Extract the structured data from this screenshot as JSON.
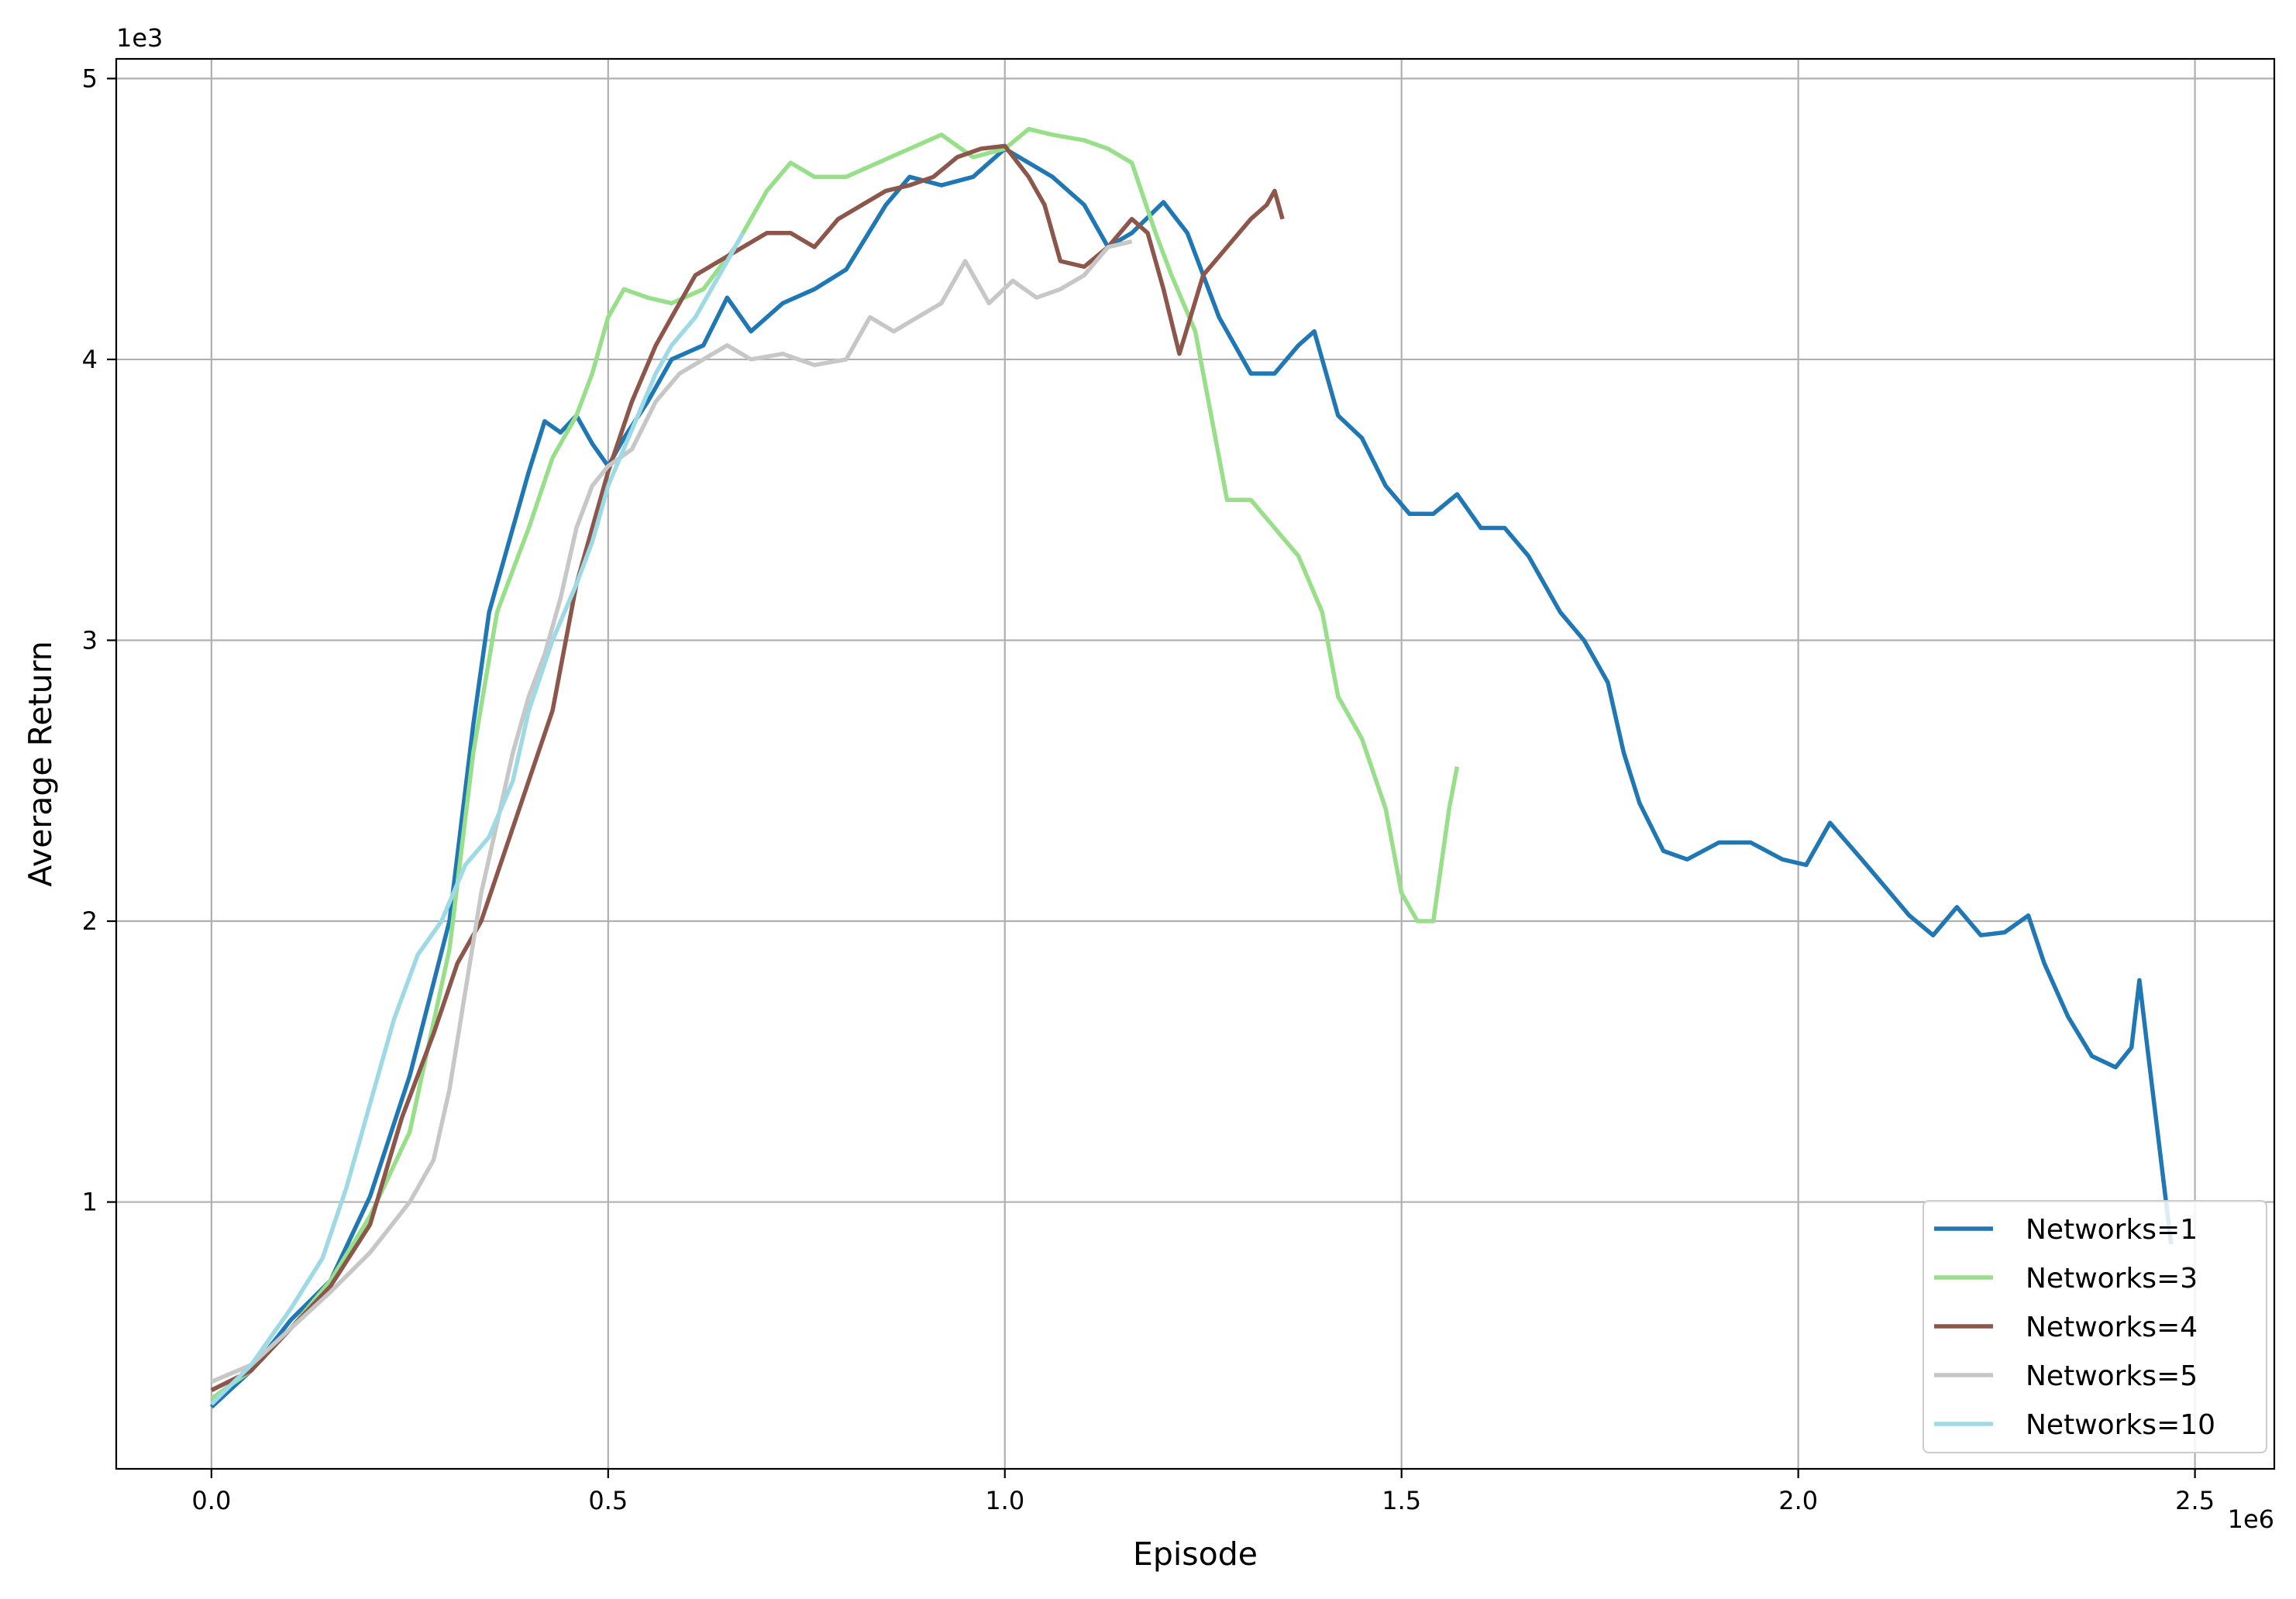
{
  "chart_data": {
    "type": "line",
    "title": "",
    "xlabel": "Episode",
    "ylabel": "Average Return",
    "x_offset_text": "1e6",
    "y_offset_text": "1e3",
    "xlim": [
      -0.12,
      2.6
    ],
    "ylim": [
      0.05,
      5.07
    ],
    "xticks": [
      0.0,
      0.5,
      1.0,
      1.5,
      2.0,
      2.5
    ],
    "xtick_labels": [
      "0.0",
      "0.5",
      "1.0",
      "1.5",
      "2.0",
      "2.5"
    ],
    "yticks": [
      1,
      2,
      3,
      4,
      5
    ],
    "ytick_labels": [
      "1",
      "2",
      "3",
      "4",
      "5"
    ],
    "grid": true,
    "legend_position": "lower-right",
    "series": [
      {
        "name": "Networks=1",
        "color": "#1f77b4",
        "points": [
          [
            0.0,
            0.27
          ],
          [
            0.05,
            0.4
          ],
          [
            0.1,
            0.58
          ],
          [
            0.15,
            0.72
          ],
          [
            0.2,
            1.02
          ],
          [
            0.25,
            1.45
          ],
          [
            0.3,
            2.0
          ],
          [
            0.33,
            2.7
          ],
          [
            0.35,
            3.1
          ],
          [
            0.38,
            3.4
          ],
          [
            0.4,
            3.6
          ],
          [
            0.42,
            3.78
          ],
          [
            0.44,
            3.74
          ],
          [
            0.46,
            3.8
          ],
          [
            0.48,
            3.7
          ],
          [
            0.5,
            3.62
          ],
          [
            0.52,
            3.72
          ],
          [
            0.55,
            3.85
          ],
          [
            0.58,
            4.0
          ],
          [
            0.62,
            4.05
          ],
          [
            0.65,
            4.22
          ],
          [
            0.68,
            4.1
          ],
          [
            0.72,
            4.2
          ],
          [
            0.76,
            4.25
          ],
          [
            0.8,
            4.32
          ],
          [
            0.85,
            4.55
          ],
          [
            0.88,
            4.65
          ],
          [
            0.92,
            4.62
          ],
          [
            0.96,
            4.65
          ],
          [
            1.0,
            4.75
          ],
          [
            1.03,
            4.7
          ],
          [
            1.06,
            4.65
          ],
          [
            1.1,
            4.55
          ],
          [
            1.13,
            4.4
          ],
          [
            1.16,
            4.45
          ],
          [
            1.2,
            4.56
          ],
          [
            1.23,
            4.45
          ],
          [
            1.27,
            4.15
          ],
          [
            1.31,
            3.95
          ],
          [
            1.34,
            3.95
          ],
          [
            1.37,
            4.05
          ],
          [
            1.39,
            4.1
          ],
          [
            1.42,
            3.8
          ],
          [
            1.45,
            3.72
          ],
          [
            1.48,
            3.55
          ],
          [
            1.51,
            3.45
          ],
          [
            1.54,
            3.45
          ],
          [
            1.57,
            3.52
          ],
          [
            1.6,
            3.4
          ],
          [
            1.63,
            3.4
          ],
          [
            1.66,
            3.3
          ],
          [
            1.7,
            3.1
          ],
          [
            1.73,
            3.0
          ],
          [
            1.76,
            2.85
          ],
          [
            1.78,
            2.6
          ],
          [
            1.8,
            2.42
          ],
          [
            1.83,
            2.25
          ],
          [
            1.86,
            2.22
          ],
          [
            1.9,
            2.28
          ],
          [
            1.94,
            2.28
          ],
          [
            1.98,
            2.22
          ],
          [
            2.01,
            2.2
          ],
          [
            2.04,
            2.35
          ],
          [
            2.08,
            2.22
          ],
          [
            2.11,
            2.12
          ],
          [
            2.14,
            2.02
          ],
          [
            2.17,
            1.95
          ],
          [
            2.2,
            2.05
          ],
          [
            2.23,
            1.95
          ],
          [
            2.26,
            1.96
          ],
          [
            2.29,
            2.02
          ],
          [
            2.31,
            1.85
          ],
          [
            2.34,
            1.66
          ],
          [
            2.37,
            1.52
          ],
          [
            2.4,
            1.48
          ],
          [
            2.42,
            1.55
          ],
          [
            2.43,
            1.79
          ],
          [
            2.44,
            1.55
          ],
          [
            2.47,
            0.85
          ]
        ]
      },
      {
        "name": "Networks=3",
        "color": "#98df8a",
        "points": [
          [
            0.0,
            0.3
          ],
          [
            0.05,
            0.4
          ],
          [
            0.1,
            0.55
          ],
          [
            0.15,
            0.72
          ],
          [
            0.2,
            0.95
          ],
          [
            0.25,
            1.25
          ],
          [
            0.3,
            1.9
          ],
          [
            0.33,
            2.6
          ],
          [
            0.36,
            3.1
          ],
          [
            0.38,
            3.25
          ],
          [
            0.4,
            3.4
          ],
          [
            0.43,
            3.65
          ],
          [
            0.46,
            3.8
          ],
          [
            0.48,
            3.95
          ],
          [
            0.5,
            4.15
          ],
          [
            0.52,
            4.25
          ],
          [
            0.55,
            4.22
          ],
          [
            0.58,
            4.2
          ],
          [
            0.62,
            4.25
          ],
          [
            0.66,
            4.4
          ],
          [
            0.7,
            4.6
          ],
          [
            0.73,
            4.7
          ],
          [
            0.76,
            4.65
          ],
          [
            0.8,
            4.65
          ],
          [
            0.84,
            4.7
          ],
          [
            0.88,
            4.75
          ],
          [
            0.92,
            4.8
          ],
          [
            0.96,
            4.72
          ],
          [
            1.0,
            4.75
          ],
          [
            1.03,
            4.82
          ],
          [
            1.06,
            4.8
          ],
          [
            1.1,
            4.78
          ],
          [
            1.13,
            4.75
          ],
          [
            1.16,
            4.7
          ],
          [
            1.19,
            4.45
          ],
          [
            1.21,
            4.3
          ],
          [
            1.24,
            4.1
          ],
          [
            1.26,
            3.8
          ],
          [
            1.28,
            3.5
          ],
          [
            1.31,
            3.5
          ],
          [
            1.34,
            3.4
          ],
          [
            1.37,
            3.3
          ],
          [
            1.4,
            3.1
          ],
          [
            1.42,
            2.8
          ],
          [
            1.45,
            2.65
          ],
          [
            1.48,
            2.4
          ],
          [
            1.5,
            2.1
          ],
          [
            1.52,
            2.0
          ],
          [
            1.54,
            2.0
          ],
          [
            1.56,
            2.4
          ],
          [
            1.57,
            2.55
          ]
        ]
      },
      {
        "name": "Networks=4",
        "color": "#8c564b",
        "points": [
          [
            0.0,
            0.33
          ],
          [
            0.05,
            0.4
          ],
          [
            0.1,
            0.55
          ],
          [
            0.15,
            0.7
          ],
          [
            0.2,
            0.92
          ],
          [
            0.24,
            1.3
          ],
          [
            0.28,
            1.6
          ],
          [
            0.31,
            1.85
          ],
          [
            0.34,
            2.0
          ],
          [
            0.37,
            2.25
          ],
          [
            0.4,
            2.5
          ],
          [
            0.43,
            2.75
          ],
          [
            0.46,
            3.2
          ],
          [
            0.48,
            3.4
          ],
          [
            0.5,
            3.6
          ],
          [
            0.53,
            3.85
          ],
          [
            0.56,
            4.05
          ],
          [
            0.58,
            4.15
          ],
          [
            0.61,
            4.3
          ],
          [
            0.64,
            4.35
          ],
          [
            0.67,
            4.4
          ],
          [
            0.7,
            4.45
          ],
          [
            0.73,
            4.45
          ],
          [
            0.76,
            4.4
          ],
          [
            0.79,
            4.5
          ],
          [
            0.82,
            4.55
          ],
          [
            0.85,
            4.6
          ],
          [
            0.88,
            4.62
          ],
          [
            0.91,
            4.65
          ],
          [
            0.94,
            4.72
          ],
          [
            0.97,
            4.75
          ],
          [
            1.0,
            4.76
          ],
          [
            1.03,
            4.65
          ],
          [
            1.05,
            4.55
          ],
          [
            1.07,
            4.35
          ],
          [
            1.1,
            4.33
          ],
          [
            1.13,
            4.4
          ],
          [
            1.16,
            4.5
          ],
          [
            1.18,
            4.45
          ],
          [
            1.2,
            4.25
          ],
          [
            1.22,
            4.02
          ],
          [
            1.25,
            4.3
          ],
          [
            1.28,
            4.4
          ],
          [
            1.31,
            4.5
          ],
          [
            1.33,
            4.55
          ],
          [
            1.34,
            4.6
          ],
          [
            1.35,
            4.5
          ]
        ]
      },
      {
        "name": "Networks=5",
        "color": "#c7c7c7",
        "points": [
          [
            0.0,
            0.36
          ],
          [
            0.05,
            0.42
          ],
          [
            0.1,
            0.55
          ],
          [
            0.15,
            0.68
          ],
          [
            0.2,
            0.82
          ],
          [
            0.25,
            1.0
          ],
          [
            0.28,
            1.15
          ],
          [
            0.3,
            1.4
          ],
          [
            0.32,
            1.75
          ],
          [
            0.34,
            2.1
          ],
          [
            0.36,
            2.35
          ],
          [
            0.38,
            2.6
          ],
          [
            0.4,
            2.8
          ],
          [
            0.42,
            2.95
          ],
          [
            0.44,
            3.15
          ],
          [
            0.46,
            3.4
          ],
          [
            0.48,
            3.55
          ],
          [
            0.5,
            3.62
          ],
          [
            0.53,
            3.68
          ],
          [
            0.56,
            3.85
          ],
          [
            0.59,
            3.95
          ],
          [
            0.62,
            4.0
          ],
          [
            0.65,
            4.05
          ],
          [
            0.68,
            4.0
          ],
          [
            0.72,
            4.02
          ],
          [
            0.76,
            3.98
          ],
          [
            0.8,
            4.0
          ],
          [
            0.83,
            4.15
          ],
          [
            0.86,
            4.1
          ],
          [
            0.89,
            4.15
          ],
          [
            0.92,
            4.2
          ],
          [
            0.95,
            4.35
          ],
          [
            0.98,
            4.2
          ],
          [
            1.01,
            4.28
          ],
          [
            1.04,
            4.22
          ],
          [
            1.07,
            4.25
          ],
          [
            1.1,
            4.3
          ],
          [
            1.13,
            4.4
          ],
          [
            1.16,
            4.42
          ]
        ]
      },
      {
        "name": "Networks=10",
        "color": "#9edae5",
        "points": [
          [
            0.0,
            0.28
          ],
          [
            0.05,
            0.42
          ],
          [
            0.1,
            0.62
          ],
          [
            0.14,
            0.8
          ],
          [
            0.17,
            1.05
          ],
          [
            0.2,
            1.35
          ],
          [
            0.23,
            1.65
          ],
          [
            0.26,
            1.88
          ],
          [
            0.29,
            2.0
          ],
          [
            0.32,
            2.2
          ],
          [
            0.35,
            2.3
          ],
          [
            0.38,
            2.5
          ],
          [
            0.4,
            2.75
          ],
          [
            0.43,
            3.0
          ],
          [
            0.46,
            3.2
          ],
          [
            0.48,
            3.35
          ],
          [
            0.5,
            3.55
          ],
          [
            0.53,
            3.75
          ],
          [
            0.56,
            3.95
          ],
          [
            0.58,
            4.05
          ],
          [
            0.61,
            4.15
          ],
          [
            0.64,
            4.3
          ],
          [
            0.67,
            4.45
          ]
        ]
      }
    ]
  }
}
